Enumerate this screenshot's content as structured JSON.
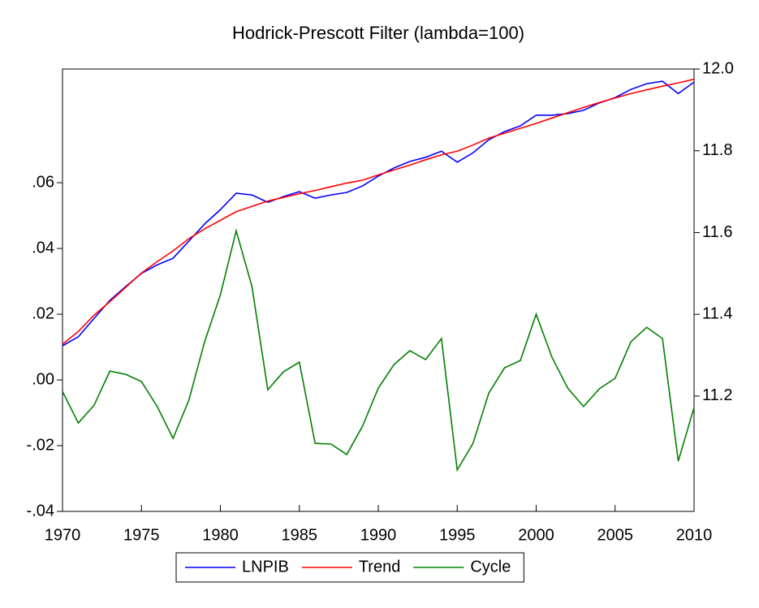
{
  "chart_data": {
    "type": "line",
    "title": "Hodrick-Prescott Filter (lambda=100)",
    "x": [
      1970,
      1971,
      1972,
      1973,
      1974,
      1975,
      1976,
      1977,
      1978,
      1979,
      1980,
      1981,
      1982,
      1983,
      1984,
      1985,
      1986,
      1987,
      1988,
      1989,
      1990,
      1991,
      1992,
      1993,
      1994,
      1995,
      1996,
      1997,
      1998,
      1999,
      2000,
      2001,
      2002,
      2003,
      2004,
      2005,
      2006,
      2007,
      2008,
      2009,
      2010
    ],
    "xlim": [
      1970,
      2010
    ],
    "xticks": [
      1970,
      1975,
      1980,
      1985,
      1990,
      1995,
      2000,
      2005,
      2010
    ],
    "ylim": [
      -0.04,
      0.0946
    ],
    "yticks": [
      {
        "value": -0.04,
        "label": "-.04"
      },
      {
        "value": -0.02,
        "label": "-.02"
      },
      {
        "value": 0,
        "label": ".00"
      },
      {
        "value": 0.02,
        "label": ".02"
      },
      {
        "value": 0.04,
        "label": ".04"
      },
      {
        "value": 0.06,
        "label": ".06"
      }
    ],
    "y2lim": [
      10.918,
      12.0
    ],
    "y2ticks": [
      11.2,
      11.4,
      11.6,
      11.8,
      {
        "value": 12.0,
        "label": "12.0"
      }
    ],
    "series": [
      {
        "name": "LNPIB",
        "color": "#0000ff",
        "axis": "y2",
        "values": [
          11.323,
          11.345,
          11.39,
          11.434,
          11.468,
          11.5,
          11.521,
          11.537,
          11.579,
          11.621,
          11.656,
          11.696,
          11.692,
          11.674,
          11.688,
          11.7,
          11.684,
          11.692,
          11.698,
          11.714,
          11.738,
          11.758,
          11.774,
          11.784,
          11.799,
          11.772,
          11.795,
          11.827,
          11.847,
          11.861,
          11.887,
          11.887,
          11.891,
          11.899,
          11.917,
          11.93,
          11.95,
          11.964,
          11.97,
          11.94,
          11.968
        ]
      },
      {
        "name": "Trend",
        "color": "#ff0000",
        "axis": "y2",
        "values": [
          11.327,
          11.358,
          11.398,
          11.431,
          11.466,
          11.501,
          11.529,
          11.555,
          11.585,
          11.609,
          11.63,
          11.651,
          11.664,
          11.677,
          11.686,
          11.695,
          11.703,
          11.712,
          11.721,
          11.728,
          11.741,
          11.753,
          11.765,
          11.778,
          11.79,
          11.799,
          11.814,
          11.831,
          11.843,
          11.855,
          11.867,
          11.88,
          11.893,
          11.906,
          11.918,
          11.929,
          11.94,
          11.949,
          11.958,
          11.966,
          11.975
        ]
      },
      {
        "name": "Cycle",
        "color": "#008000",
        "values": [
          -0.0035,
          -0.0131,
          -0.0077,
          0.0027,
          0.0017,
          -0.0005,
          -0.0081,
          -0.0178,
          -0.0062,
          0.0116,
          0.0259,
          0.0454,
          0.0284,
          -0.003,
          0.0025,
          0.0054,
          -0.0193,
          -0.0195,
          -0.0227,
          -0.0141,
          -0.0025,
          0.0047,
          0.0089,
          0.0062,
          0.0126,
          -0.0274,
          -0.0193,
          -0.004,
          0.0037,
          0.0059,
          0.02,
          0.0069,
          -0.0025,
          -0.0081,
          -0.0027,
          0.0005,
          0.0116,
          0.016,
          0.0126,
          -0.0247,
          -0.0084
        ]
      }
    ],
    "legend": "bottom"
  }
}
